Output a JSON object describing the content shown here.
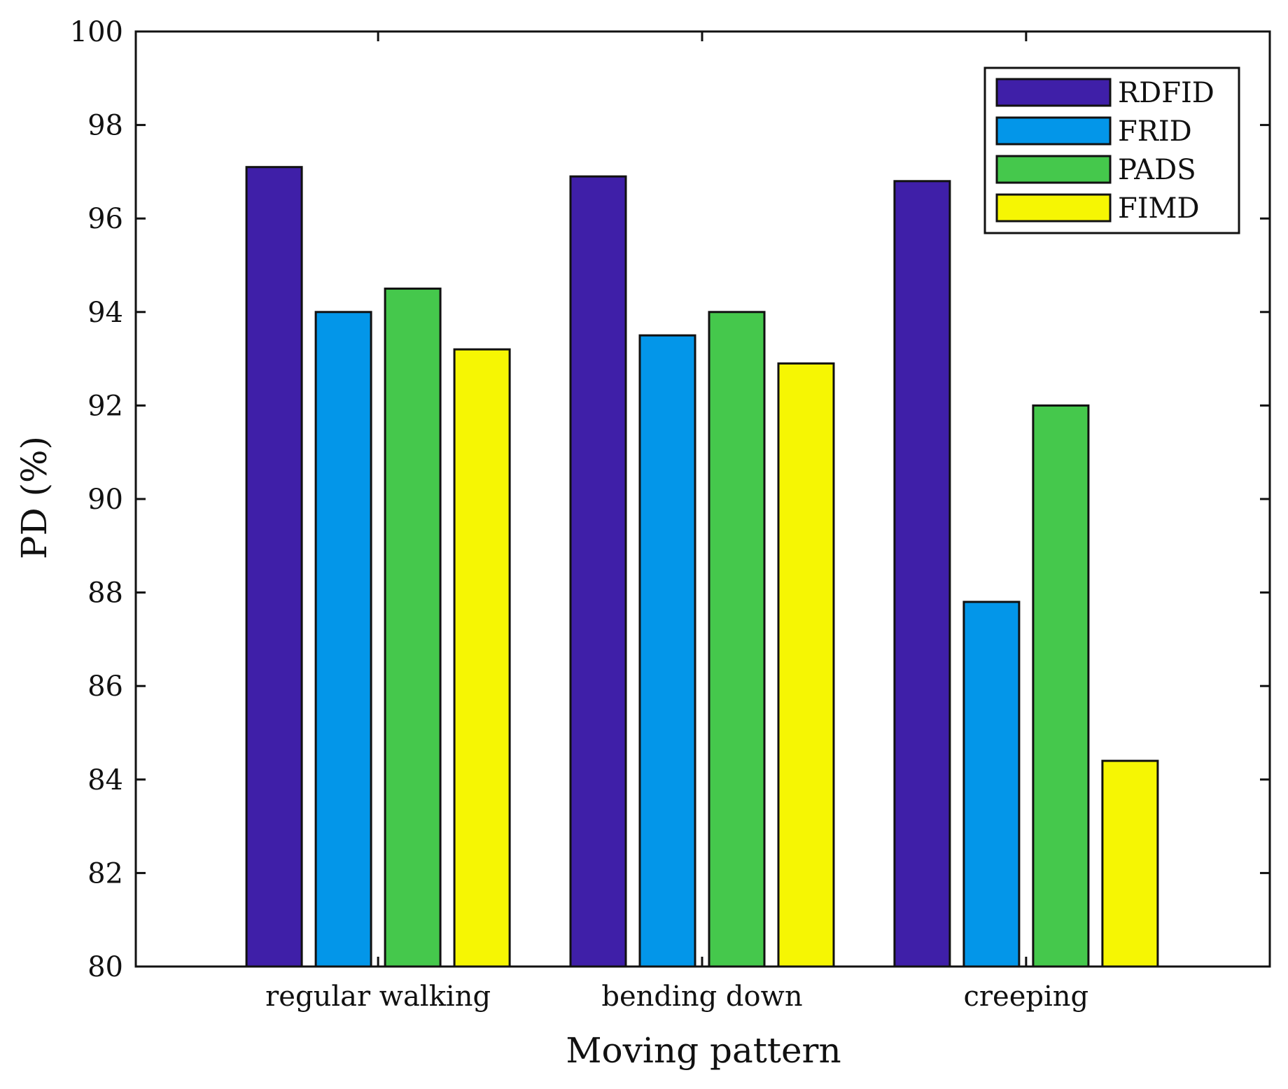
{
  "chart_data": {
    "type": "bar",
    "title": "",
    "xlabel": "Moving pattern",
    "ylabel": "PD (%)",
    "ylim": [
      80,
      100
    ],
    "yticks": [
      80,
      82,
      84,
      86,
      88,
      90,
      92,
      94,
      96,
      98,
      100
    ],
    "grid": false,
    "legend_position": "top-right",
    "categories": [
      "regular walking",
      "bending down",
      "creeping"
    ],
    "series": [
      {
        "name": "RDFID",
        "color": "#3f1fa8",
        "values": [
          97.1,
          96.9,
          96.8
        ]
      },
      {
        "name": "FRID",
        "color": "#0396e9",
        "values": [
          94.0,
          93.5,
          87.8
        ]
      },
      {
        "name": "PADS",
        "color": "#45c84c",
        "values": [
          94.5,
          94.0,
          92.0
        ]
      },
      {
        "name": "FIMD",
        "color": "#f6f603",
        "values": [
          93.2,
          92.9,
          84.4
        ]
      }
    ]
  }
}
